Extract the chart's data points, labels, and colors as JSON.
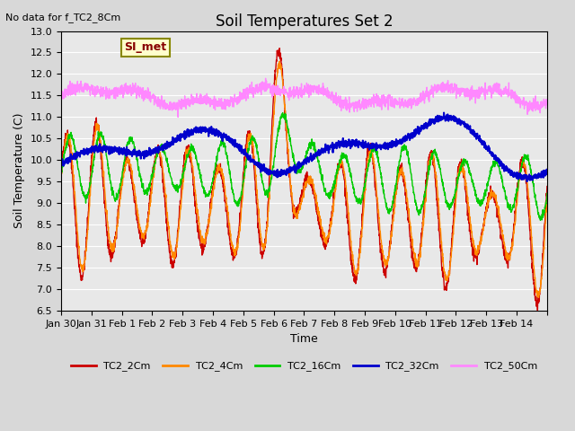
{
  "title": "Soil Temperatures Set 2",
  "subtitle": "No data for f_TC2_8Cm",
  "xlabel": "Time",
  "ylabel": "Soil Temperature (C)",
  "ylim": [
    6.5,
    13.0
  ],
  "yticks": [
    6.5,
    7.0,
    7.5,
    8.0,
    8.5,
    9.0,
    9.5,
    10.0,
    10.5,
    11.0,
    11.5,
    12.0,
    12.5,
    13.0
  ],
  "xtick_positions": [
    0,
    1,
    2,
    3,
    4,
    5,
    6,
    7,
    8,
    9,
    10,
    11,
    12,
    13,
    14,
    15,
    16
  ],
  "xtick_labels": [
    "Jan 30",
    "Jan 31",
    "Feb 1",
    "Feb 2",
    "Feb 3",
    "Feb 4",
    "Feb 5",
    "Feb 6",
    "Feb 7",
    "Feb 8",
    "Feb 9",
    "Feb 10",
    "Feb 11",
    "Feb 12",
    "Feb 13",
    "Feb 14",
    ""
  ],
  "colors": {
    "TC2_2Cm": "#cc0000",
    "TC2_4Cm": "#ff8800",
    "TC2_16Cm": "#00cc00",
    "TC2_32Cm": "#0000cc",
    "TC2_50Cm": "#ff88ff"
  },
  "legend_labels": [
    "TC2_2Cm",
    "TC2_4Cm",
    "TC2_16Cm",
    "TC2_32Cm",
    "TC2_50Cm"
  ],
  "bg_color": "#e8e8e8",
  "annotation_box": {
    "text": "SI_met",
    "facecolor": "#ffffcc",
    "edgecolor": "#888800",
    "textcolor": "#880000"
  }
}
